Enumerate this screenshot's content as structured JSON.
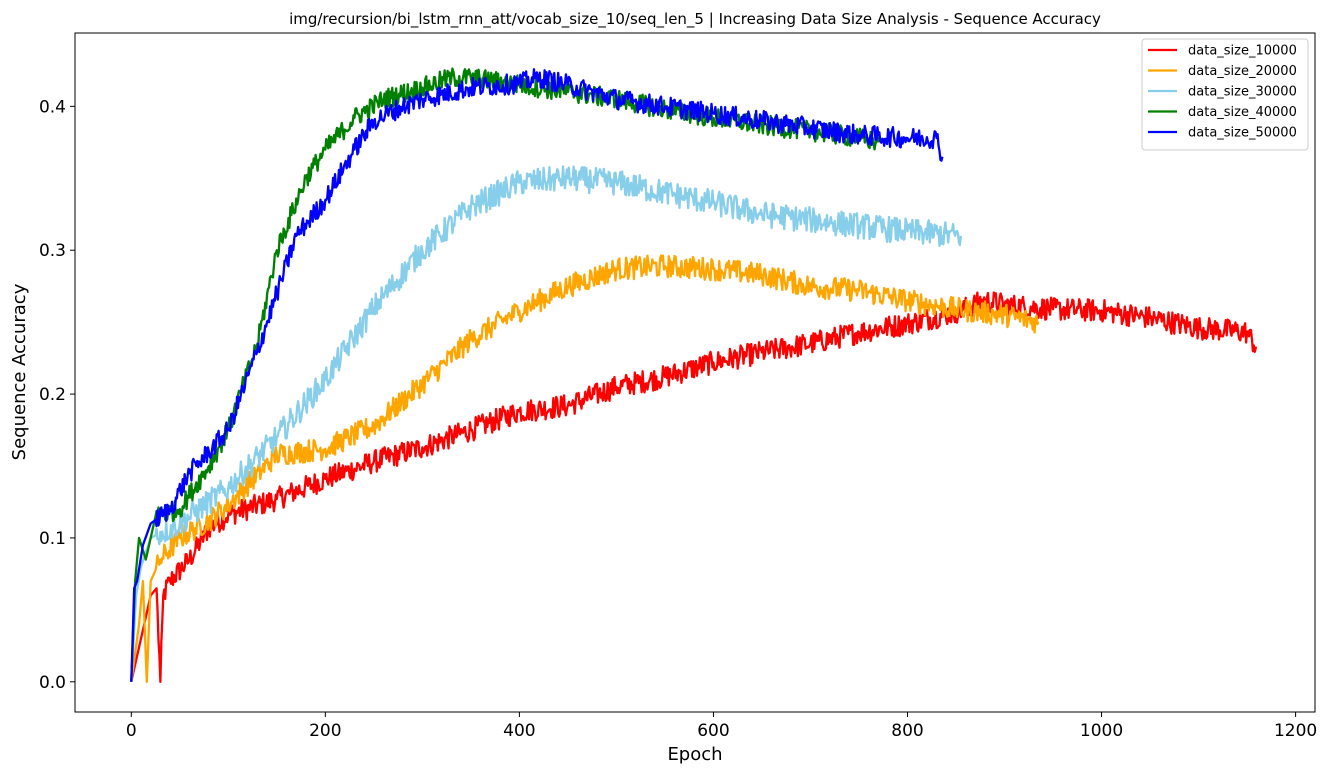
{
  "chart_data": {
    "type": "line",
    "title": "img/recursion/bi_lstm_rnn_att/vocab_size_10/seq_len_5 | Increasing Data Size Analysis - Sequence Accuracy",
    "xlabel": "Epoch",
    "ylabel": "Sequence Accuracy",
    "xlim": [
      -58,
      1220
    ],
    "ylim": [
      -0.021,
      0.451
    ],
    "xticks": [
      0,
      200,
      400,
      600,
      800,
      1000,
      1200
    ],
    "yticks": [
      0.0,
      0.1,
      0.2,
      0.3,
      0.4
    ],
    "ytick_labels": [
      "0.0",
      "0.1",
      "0.2",
      "0.3",
      "0.4"
    ],
    "grid": false,
    "legend_position": "upper right",
    "series": [
      {
        "name": "data_size_10000",
        "color": "#ff0000",
        "x": [
          0,
          10,
          20,
          26,
          30,
          33,
          40,
          60,
          80,
          100,
          150,
          200,
          250,
          300,
          350,
          400,
          450,
          500,
          550,
          600,
          650,
          700,
          750,
          800,
          850,
          880,
          900,
          950,
          1000,
          1050,
          1100,
          1150,
          1160
        ],
        "y": [
          0.0,
          0.03,
          0.06,
          0.065,
          0.0,
          0.06,
          0.07,
          0.085,
          0.107,
          0.116,
          0.127,
          0.141,
          0.153,
          0.163,
          0.175,
          0.188,
          0.192,
          0.205,
          0.212,
          0.222,
          0.229,
          0.235,
          0.243,
          0.249,
          0.257,
          0.265,
          0.262,
          0.259,
          0.258,
          0.253,
          0.246,
          0.243,
          0.232
        ],
        "noise": 0.008
      },
      {
        "name": "data_size_20000",
        "color": "#ffa500",
        "x": [
          0,
          8,
          12,
          16,
          20,
          30,
          50,
          80,
          100,
          150,
          200,
          250,
          300,
          350,
          400,
          450,
          500,
          550,
          600,
          650,
          700,
          750,
          800,
          850,
          900,
          935
        ],
        "y": [
          0.0,
          0.04,
          0.07,
          0.0,
          0.07,
          0.085,
          0.1,
          0.112,
          0.123,
          0.158,
          0.162,
          0.178,
          0.207,
          0.238,
          0.258,
          0.275,
          0.287,
          0.289,
          0.287,
          0.283,
          0.275,
          0.272,
          0.265,
          0.259,
          0.255,
          0.25
        ],
        "noise": 0.008
      },
      {
        "name": "data_size_30000",
        "color": "#87ceeb",
        "x": [
          0,
          5,
          10,
          20,
          50,
          100,
          150,
          200,
          250,
          300,
          350,
          400,
          450,
          500,
          550,
          600,
          650,
          700,
          750,
          800,
          855
        ],
        "y": [
          0.0,
          0.06,
          0.08,
          0.1,
          0.11,
          0.135,
          0.17,
          0.21,
          0.26,
          0.3,
          0.33,
          0.347,
          0.35,
          0.347,
          0.34,
          0.333,
          0.325,
          0.321,
          0.317,
          0.313,
          0.31
        ],
        "noise": 0.009
      },
      {
        "name": "data_size_40000",
        "color": "#008000",
        "x": [
          0,
          4,
          8,
          15,
          25,
          50,
          80,
          100,
          130,
          150,
          180,
          200,
          230,
          260,
          300,
          330,
          350,
          400,
          450,
          500,
          550,
          600,
          650,
          700,
          750,
          770
        ],
        "y": [
          0.0,
          0.07,
          0.1,
          0.085,
          0.115,
          0.12,
          0.15,
          0.175,
          0.235,
          0.3,
          0.35,
          0.37,
          0.392,
          0.405,
          0.413,
          0.42,
          0.42,
          0.415,
          0.41,
          0.405,
          0.398,
          0.392,
          0.387,
          0.383,
          0.378,
          0.375
        ],
        "noise": 0.007
      },
      {
        "name": "data_size_50000",
        "color": "#0000ff",
        "x": [
          0,
          3,
          6,
          12,
          20,
          40,
          60,
          80,
          100,
          130,
          150,
          170,
          200,
          230,
          250,
          280,
          300,
          350,
          400,
          420,
          450,
          500,
          550,
          600,
          650,
          700,
          750,
          800,
          830,
          836
        ],
        "y": [
          0.0,
          0.065,
          0.07,
          0.095,
          0.11,
          0.12,
          0.145,
          0.16,
          0.175,
          0.23,
          0.27,
          0.31,
          0.335,
          0.37,
          0.39,
          0.4,
          0.405,
          0.413,
          0.416,
          0.42,
          0.415,
          0.405,
          0.4,
          0.395,
          0.39,
          0.385,
          0.38,
          0.378,
          0.378,
          0.365
        ],
        "noise": 0.007
      }
    ]
  }
}
